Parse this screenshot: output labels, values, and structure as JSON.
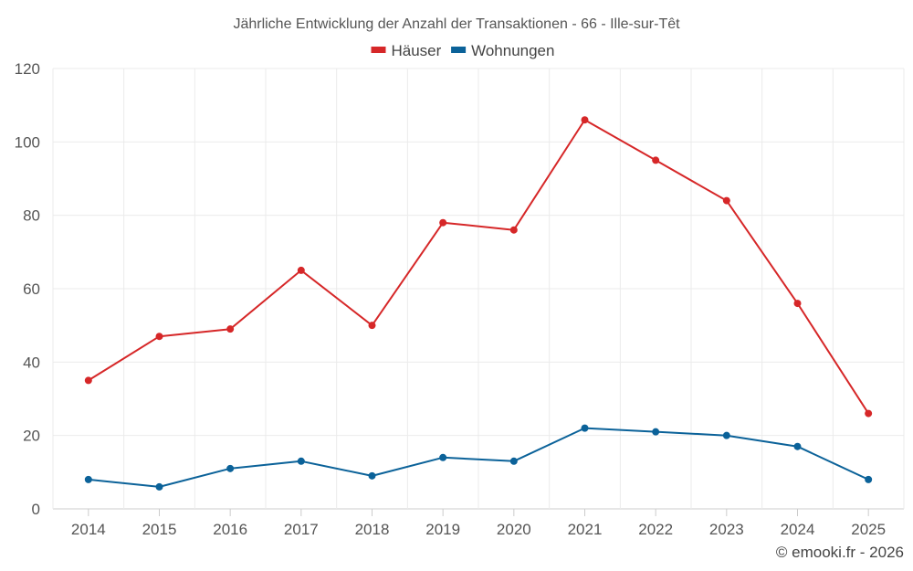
{
  "chart_data": {
    "type": "line",
    "title": "Jährliche Entwicklung der Anzahl der Transaktionen - 66 - Ille-sur-Têt",
    "x": [
      "2014",
      "2015",
      "2016",
      "2017",
      "2018",
      "2019",
      "2020",
      "2021",
      "2022",
      "2023",
      "2024",
      "2025"
    ],
    "series": [
      {
        "name": "Häuser",
        "color": "#d62728",
        "values": [
          35,
          47,
          49,
          65,
          50,
          78,
          76,
          106,
          95,
          84,
          56,
          26
        ]
      },
      {
        "name": "Wohnungen",
        "color": "#0b6299",
        "values": [
          8,
          6,
          11,
          13,
          9,
          14,
          13,
          22,
          21,
          20,
          17,
          8
        ]
      }
    ],
    "yticks": [
      0,
      20,
      40,
      60,
      80,
      100,
      120
    ],
    "ylim": [
      0,
      120
    ],
    "xlabel": "",
    "ylabel": "",
    "grid": true,
    "legend_position": "top-center"
  },
  "credit": "© emooki.fr - 2026"
}
